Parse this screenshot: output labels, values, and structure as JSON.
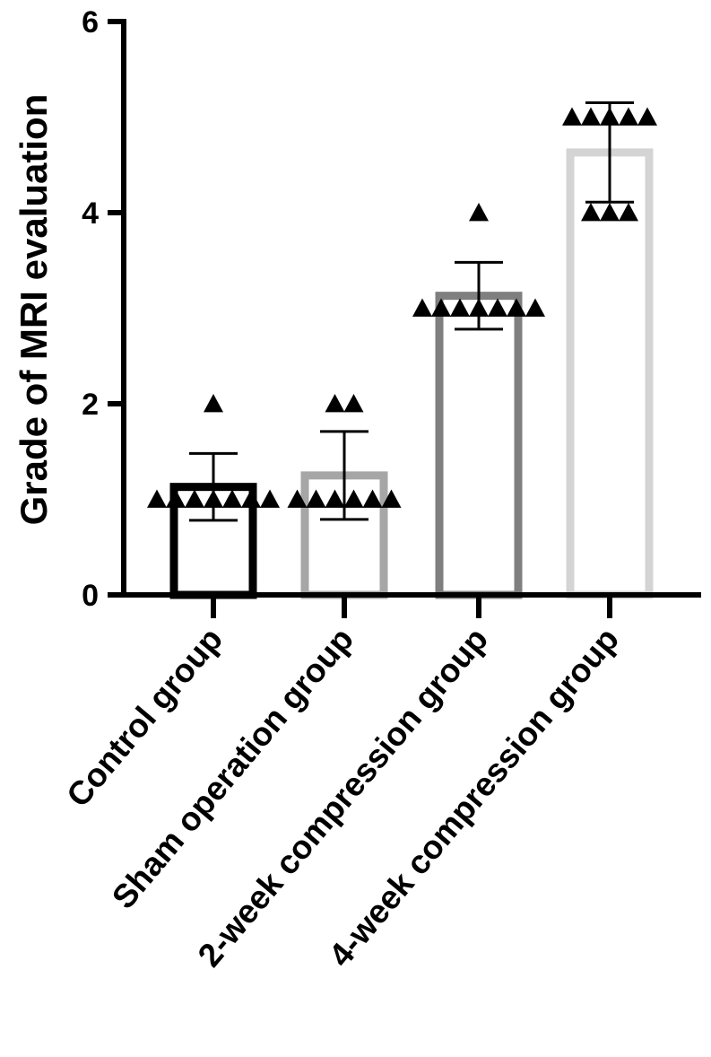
{
  "chart_data": {
    "type": "bar",
    "title": "",
    "xlabel": "",
    "ylabel": "Grade of MRI evaluation",
    "ylim": [
      0,
      6
    ],
    "yticks": [
      0,
      2,
      4,
      6
    ],
    "grid": false,
    "categories": [
      "Control group",
      "Sham operation group",
      "2-week compression group",
      "4-week compression group"
    ],
    "values": [
      1.13,
      1.25,
      3.13,
      4.63
    ],
    "error": [
      0.35,
      0.46,
      0.35,
      0.52
    ],
    "colors": [
      "#000000",
      "#a6a6a6",
      "#7f7f7f",
      "#d4d4d4"
    ],
    "points": [
      [
        2,
        1,
        1,
        1,
        1,
        1,
        1,
        1
      ],
      [
        2,
        2,
        1,
        1,
        1,
        1,
        1,
        1
      ],
      [
        4,
        3,
        3,
        3,
        3,
        3,
        3,
        3
      ],
      [
        5,
        5,
        5,
        5,
        5,
        4,
        4,
        4
      ]
    ],
    "marker": "triangle"
  }
}
